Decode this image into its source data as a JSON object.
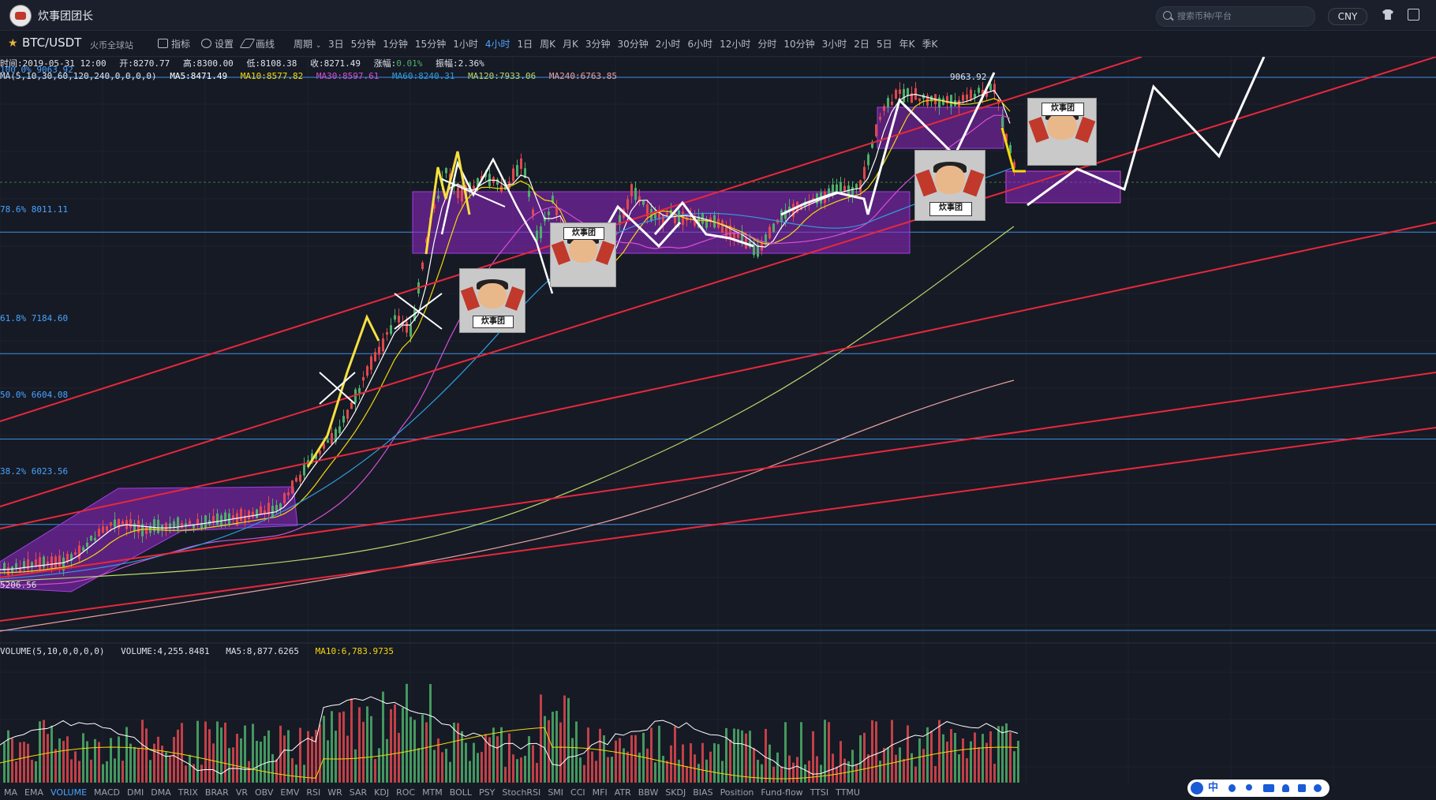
{
  "app": {
    "username": "炊事团团长"
  },
  "search": {
    "placeholder": "搜索币种/平台"
  },
  "currency": "CNY",
  "toolbar": {
    "pair": "BTC/USDT",
    "exchange": "火币全球站",
    "indicator_label": "指标",
    "settings_label": "设置",
    "draw_label": "画线",
    "period_label": "周期",
    "periods": [
      "3日",
      "5分钟",
      "1分钟",
      "15分钟",
      "1小时",
      "4小时",
      "1日",
      "周K",
      "月K",
      "3分钟",
      "30分钟",
      "2小时",
      "6小时",
      "12小时",
      "分时",
      "10分钟",
      "3小时",
      "2日",
      "5日",
      "年K",
      "季K"
    ],
    "active_period": "4小时"
  },
  "info": {
    "time": "时间:2019-05-31 12:00",
    "open": "开:8270.77",
    "high": "高:8300.00",
    "low": "低:8108.38",
    "close": "收:8271.49",
    "change": "涨幅:",
    "change_value": "0.01%",
    "amplitude": "振幅:2.36%"
  },
  "ma": {
    "params": "MA(5,10,30,60,120,240,0,0,0,0)",
    "ma5": "MA5:8471.49",
    "ma10": "MA10:8577.82",
    "ma30": "MA30:8597.61",
    "ma60": "MA60:8240.31",
    "ma120": "MA120:7933.06",
    "ma240": "MA240:6763.85"
  },
  "fib": [
    {
      "label": "100.0% 9063.92",
      "price": 9063.92
    },
    {
      "label": "78.6% 8011.11",
      "price": 8011.11
    },
    {
      "label": "61.8% 7184.60",
      "price": 7184.6
    },
    {
      "label": "50.0% 6604.08",
      "price": 6604.08
    },
    {
      "label": "38.2% 6023.56",
      "price": 6023.56
    }
  ],
  "high_label": "9063.92",
  "low_label": "5206.56",
  "meme_text_1": "炊事团",
  "meme_text_2": "炊事团",
  "volume": {
    "params": "VOLUME(5,10,0,0,0,0)",
    "volume": "VOLUME:4,255.8481",
    "ma5": "MA5:8,877.6265",
    "ma10": "MA10:6,783.9735"
  },
  "indicators": [
    "MA",
    "EMA",
    "VOLUME",
    "MACD",
    "DMI",
    "DMA",
    "TRIX",
    "BRAR",
    "VR",
    "OBV",
    "EMV",
    "RSI",
    "WR",
    "SAR",
    "KDJ",
    "ROC",
    "MTM",
    "BOLL",
    "PSY",
    "StochRSI",
    "SMI",
    "CCI",
    "MFI",
    "ATR",
    "BBW",
    "SKDJ",
    "BIAS",
    "Position",
    "Fund-flow",
    "TTSI",
    "TTMU"
  ],
  "active_indicator": "VOLUME",
  "ime": {
    "mode": "中"
  },
  "colors": {
    "up": "#4caf6a",
    "down": "#e0484d",
    "ma5": "#ffffff",
    "ma10": "#f5d90a",
    "ma30": "#d64fd6",
    "ma60": "#2f9fe0",
    "ma120": "#b8d86b",
    "ma240": "#e8a0a0",
    "accent": "#4aa3ff"
  },
  "chart_data": {
    "type": "candlestick",
    "price_range": [
      5206.56,
      9063.92
    ],
    "fib_levels": [
      9063.92,
      8011.11,
      7184.6,
      6604.08,
      6023.56
    ],
    "ma_last": {
      "MA5": 8471.49,
      "MA10": 8577.82,
      "MA30": 8597.61,
      "MA60": 8240.31,
      "MA120": 7933.06,
      "MA240": 6763.85
    },
    "volume_last": {
      "VOLUME": 4255.8481,
      "MA5": 8877.6265,
      "MA10": 6783.9735
    }
  }
}
